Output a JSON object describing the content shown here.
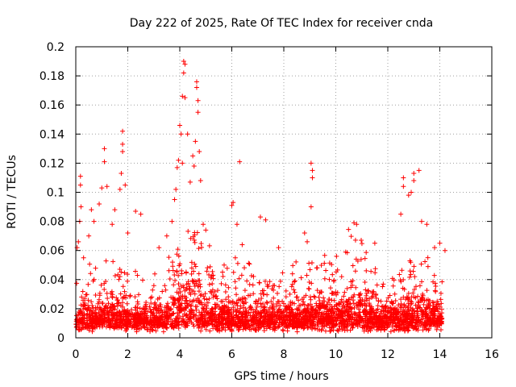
{
  "chart_data": {
    "type": "scatter",
    "title": "Day 222 of 2025, Rate Of TEC Index for receiver cnda",
    "xlabel": "GPS time / hours",
    "ylabel": "ROTI / TECUs",
    "xlim": [
      0,
      16
    ],
    "ylim": [
      0,
      0.2
    ],
    "x_ticks": [
      0,
      2,
      4,
      6,
      8,
      10,
      12,
      14,
      16
    ],
    "x_tick_labels": [
      "0",
      "2",
      "4",
      "6",
      "8",
      "10",
      "12",
      "14",
      "16"
    ],
    "y_ticks": [
      0,
      0.02,
      0.04,
      0.06,
      0.08,
      0.1,
      0.12,
      0.14,
      0.16,
      0.18,
      0.2
    ],
    "y_tick_labels": [
      "0",
      "0.02",
      "0.04",
      "0.06",
      "0.08",
      "0.1",
      "0.12",
      "0.14",
      "0.16",
      "0.18",
      "0.2"
    ],
    "grid": true,
    "marker": "+",
    "series_color": "#ff0000",
    "series": [
      {
        "name": "ROTI",
        "points": [
          [
            0.05,
            0.062
          ],
          [
            0.1,
            0.066
          ],
          [
            0.15,
            0.08
          ],
          [
            0.18,
            0.105
          ],
          [
            0.18,
            0.111
          ],
          [
            0.2,
            0.09
          ],
          [
            0.3,
            0.055
          ],
          [
            0.5,
            0.07
          ],
          [
            0.6,
            0.088
          ],
          [
            0.7,
            0.08
          ],
          [
            0.9,
            0.092
          ],
          [
            1.0,
            0.103
          ],
          [
            1.1,
            0.13
          ],
          [
            1.1,
            0.121
          ],
          [
            1.2,
            0.104
          ],
          [
            1.4,
            0.078
          ],
          [
            1.5,
            0.088
          ],
          [
            1.7,
            0.102
          ],
          [
            1.75,
            0.113
          ],
          [
            1.8,
            0.142
          ],
          [
            1.8,
            0.133
          ],
          [
            1.8,
            0.128
          ],
          [
            1.9,
            0.105
          ],
          [
            2.0,
            0.072
          ],
          [
            2.3,
            0.087
          ],
          [
            2.5,
            0.085
          ],
          [
            3.2,
            0.062
          ],
          [
            3.5,
            0.07
          ],
          [
            3.7,
            0.08
          ],
          [
            3.8,
            0.095
          ],
          [
            3.85,
            0.102
          ],
          [
            3.9,
            0.117
          ],
          [
            3.95,
            0.122
          ],
          [
            4.0,
            0.146
          ],
          [
            4.05,
            0.14
          ],
          [
            4.1,
            0.12
          ],
          [
            4.1,
            0.166
          ],
          [
            4.15,
            0.182
          ],
          [
            4.15,
            0.19
          ],
          [
            4.2,
            0.188
          ],
          [
            4.2,
            0.165
          ],
          [
            4.3,
            0.14
          ],
          [
            4.4,
            0.107
          ],
          [
            4.5,
            0.125
          ],
          [
            4.55,
            0.118
          ],
          [
            4.6,
            0.135
          ],
          [
            4.65,
            0.172
          ],
          [
            4.65,
            0.176
          ],
          [
            4.7,
            0.163
          ],
          [
            4.7,
            0.155
          ],
          [
            4.75,
            0.128
          ],
          [
            4.8,
            0.108
          ],
          [
            4.9,
            0.078
          ],
          [
            5.0,
            0.074
          ],
          [
            6.0,
            0.091
          ],
          [
            6.05,
            0.093
          ],
          [
            6.2,
            0.078
          ],
          [
            6.3,
            0.121
          ],
          [
            6.4,
            0.064
          ],
          [
            7.1,
            0.083
          ],
          [
            7.3,
            0.081
          ],
          [
            7.8,
            0.062
          ],
          [
            8.8,
            0.072
          ],
          [
            8.9,
            0.066
          ],
          [
            9.05,
            0.12
          ],
          [
            9.1,
            0.11
          ],
          [
            9.1,
            0.115
          ],
          [
            9.05,
            0.09
          ],
          [
            10.7,
            0.079
          ],
          [
            10.8,
            0.078
          ],
          [
            11.5,
            0.065
          ],
          [
            12.5,
            0.085
          ],
          [
            12.6,
            0.104
          ],
          [
            12.6,
            0.11
          ],
          [
            12.8,
            0.098
          ],
          [
            12.9,
            0.1
          ],
          [
            13.0,
            0.108
          ],
          [
            13.0,
            0.113
          ],
          [
            13.2,
            0.115
          ],
          [
            13.3,
            0.08
          ],
          [
            13.5,
            0.078
          ],
          [
            13.8,
            0.062
          ],
          [
            14.0,
            0.065
          ],
          [
            14.2,
            0.06
          ]
        ]
      }
    ]
  }
}
